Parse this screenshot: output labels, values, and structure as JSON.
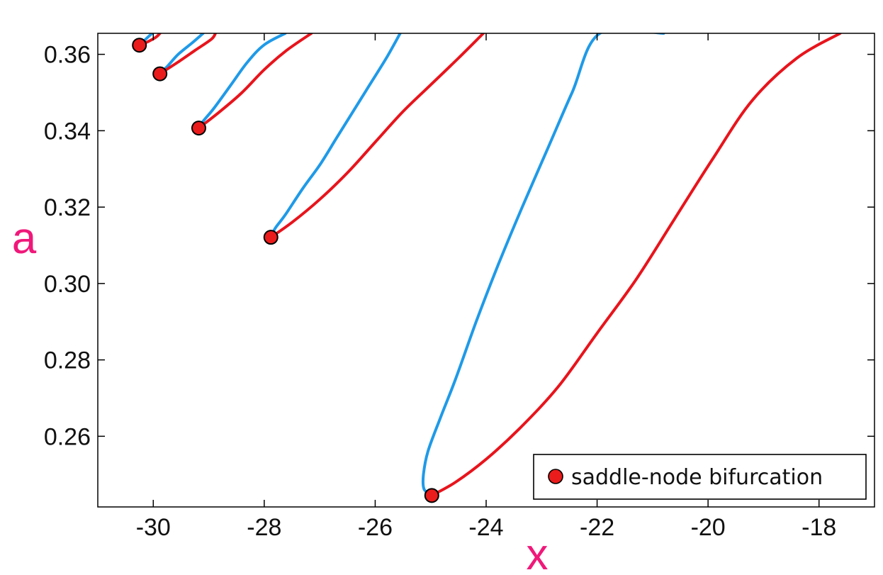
{
  "chart_data": {
    "type": "line",
    "title": "",
    "xlabel": "x",
    "ylabel": "a",
    "xlim": [
      -31.0,
      -17.0
    ],
    "ylim": [
      0.2415,
      0.3655
    ],
    "xticks": [
      -30,
      -28,
      -26,
      -24,
      -22,
      -20,
      -18
    ],
    "xtick_labels": [
      "-30",
      "-28",
      "-26",
      "-24",
      "-22",
      "-20",
      "-18"
    ],
    "yticks": [
      0.26,
      0.28,
      0.3,
      0.32,
      0.34,
      0.36
    ],
    "ytick_labels": [
      "0.26",
      "0.28",
      "0.30",
      "0.32",
      "0.34",
      "0.36"
    ],
    "grid": false,
    "legend": {
      "position": "bottom-right",
      "entries": [
        "saddle-node bifurcation"
      ]
    },
    "colors": {
      "blue_branch": "#1f9ae8",
      "red_branch": "#e8141c",
      "marker_fill": "#ea1c1c",
      "axis_title": "#f0187a"
    },
    "branches": [
      {
        "bifurcation": {
          "x": -24.98,
          "a": 0.2445
        },
        "blue": [
          [
            -24.98,
            0.2445
          ],
          [
            -25.12,
            0.2462
          ],
          [
            -25.13,
            0.25
          ],
          [
            -25.05,
            0.256
          ],
          [
            -24.82,
            0.265
          ],
          [
            -24.55,
            0.275
          ],
          [
            -24.18,
            0.29
          ],
          [
            -23.78,
            0.305
          ],
          [
            -23.35,
            0.32
          ],
          [
            -22.9,
            0.335
          ],
          [
            -22.45,
            0.35
          ],
          [
            -21.95,
            0.3655
          ],
          [
            -20.8,
            0.3655
          ]
        ],
        "red": [
          [
            -24.98,
            0.2445
          ],
          [
            -24.55,
            0.248
          ],
          [
            -24.0,
            0.254
          ],
          [
            -23.4,
            0.262
          ],
          [
            -22.7,
            0.273
          ],
          [
            -22.0,
            0.287
          ],
          [
            -21.3,
            0.301
          ],
          [
            -20.6,
            0.317
          ],
          [
            -19.9,
            0.333
          ],
          [
            -19.2,
            0.348
          ],
          [
            -18.4,
            0.359
          ],
          [
            -17.62,
            0.3655
          ]
        ]
      },
      {
        "bifurcation": {
          "x": -27.88,
          "a": 0.3121
        },
        "blue": [
          [
            -27.88,
            0.3121
          ],
          [
            -27.8,
            0.3145
          ],
          [
            -27.62,
            0.318
          ],
          [
            -27.3,
            0.325
          ],
          [
            -27.0,
            0.331
          ],
          [
            -26.7,
            0.338
          ],
          [
            -26.4,
            0.345
          ],
          [
            -26.1,
            0.352
          ],
          [
            -25.8,
            0.359
          ],
          [
            -25.55,
            0.3655
          ]
        ],
        "red": [
          [
            -27.88,
            0.3121
          ],
          [
            -27.5,
            0.316
          ],
          [
            -27.0,
            0.322
          ],
          [
            -26.5,
            0.329
          ],
          [
            -26.0,
            0.337
          ],
          [
            -25.5,
            0.345
          ],
          [
            -25.0,
            0.352
          ],
          [
            -24.5,
            0.359
          ],
          [
            -24.05,
            0.3655
          ]
        ]
      },
      {
        "bifurcation": {
          "x": -29.18,
          "a": 0.3407
        },
        "blue": [
          [
            -29.18,
            0.3407
          ],
          [
            -29.1,
            0.3425
          ],
          [
            -28.9,
            0.346
          ],
          [
            -28.6,
            0.352
          ],
          [
            -28.3,
            0.358
          ],
          [
            -28.0,
            0.3625
          ],
          [
            -27.62,
            0.3655
          ]
        ],
        "red": [
          [
            -29.18,
            0.3407
          ],
          [
            -28.8,
            0.345
          ],
          [
            -28.4,
            0.35
          ],
          [
            -28.0,
            0.356
          ],
          [
            -27.6,
            0.361
          ],
          [
            -27.15,
            0.3655
          ]
        ]
      },
      {
        "bifurcation": {
          "x": -29.88,
          "a": 0.3549
        },
        "blue": [
          [
            -29.88,
            0.3549
          ],
          [
            -29.75,
            0.3568
          ],
          [
            -29.55,
            0.36
          ],
          [
            -29.3,
            0.363
          ],
          [
            -29.1,
            0.3655
          ]
        ],
        "red": [
          [
            -29.88,
            0.3549
          ],
          [
            -29.55,
            0.358
          ],
          [
            -29.25,
            0.361
          ],
          [
            -28.95,
            0.364
          ],
          [
            -28.88,
            0.3655
          ]
        ]
      },
      {
        "bifurcation": {
          "x": -30.25,
          "a": 0.3624
        },
        "blue": [
          [
            -30.25,
            0.3624
          ],
          [
            -30.17,
            0.3635
          ],
          [
            -30.06,
            0.365
          ],
          [
            -30.02,
            0.3655
          ]
        ],
        "red": [
          [
            -30.25,
            0.3624
          ],
          [
            -30.1,
            0.3633
          ],
          [
            -29.95,
            0.3645
          ],
          [
            -29.88,
            0.3655
          ]
        ]
      }
    ]
  }
}
